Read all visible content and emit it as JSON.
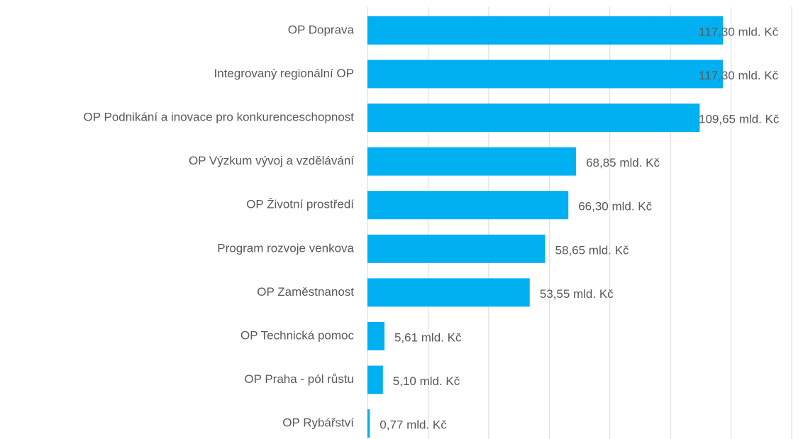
{
  "chart_data": {
    "type": "barh",
    "categories": [
      "OP Doprava",
      "Integrovaný regionální OP",
      "OP Podnikání a inovace pro konkurenceschopnost",
      "OP Výzkum vývoj a vzdělávání",
      "OP Životní prostředí",
      "Program rozvoje venkova",
      "OP Zaměstnanost",
      "OP Technická pomoc",
      "OP Praha - pól růstu",
      "OP Rybářství"
    ],
    "values": [
      117.3,
      117.3,
      109.65,
      68.85,
      66.3,
      58.65,
      53.55,
      5.61,
      5.1,
      0.77
    ],
    "value_labels": [
      "117,30 mld. Kč",
      "117,30 mld. Kč",
      "109,65 mld. Kč",
      "68,85 mld. Kč",
      "66,30 mld. Kč",
      "58,65 mld. Kč",
      "53,55 mld. Kč",
      "5,61 mld. Kč",
      "5,10 mld. Kč",
      "0,77 mld. Kč"
    ],
    "color": "#00b0f0",
    "xlim": [
      0,
      140
    ],
    "xticks": [
      0,
      20,
      40,
      60,
      80,
      100,
      120,
      140
    ],
    "grid": true
  }
}
